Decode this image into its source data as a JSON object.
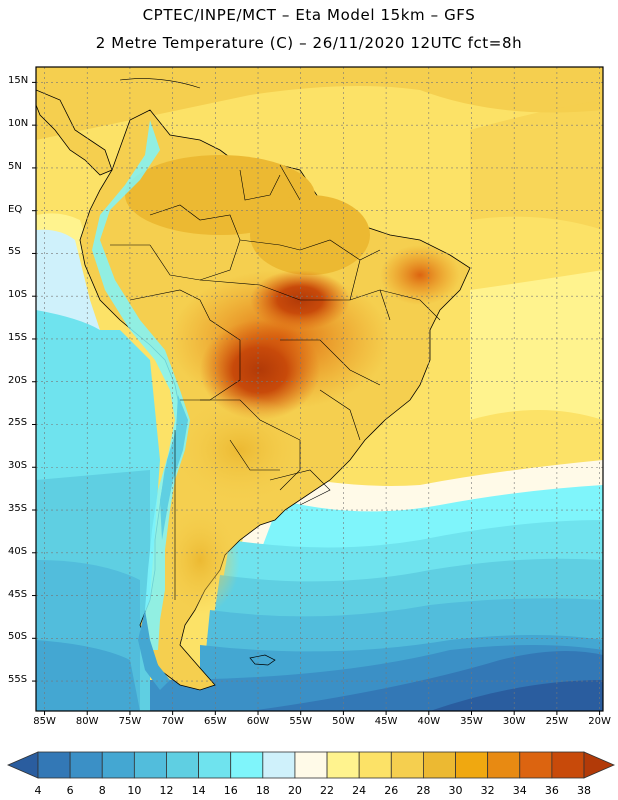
{
  "header": {
    "line1": "CPTEC/INPE/MCT –  Eta Model 15km – GFS",
    "line2": "2 Metre Temperature (C) – 26/11/2020 12UTC fct=8h"
  },
  "map": {
    "lat_labels": [
      "15N",
      "10N",
      "5N",
      "EQ",
      "5S",
      "10S",
      "15S",
      "20S",
      "25S",
      "30S",
      "35S",
      "40S",
      "45S",
      "50S",
      "55S"
    ],
    "lat_values": [
      15,
      10,
      5,
      0,
      -5,
      -10,
      -15,
      -20,
      -25,
      -30,
      -35,
      -40,
      -45,
      -50,
      -55
    ],
    "lon_labels": [
      "85W",
      "80W",
      "75W",
      "70W",
      "65W",
      "60W",
      "55W",
      "50W",
      "45W",
      "40W",
      "35W",
      "30W",
      "25W",
      "20W"
    ],
    "lon_values": [
      -85,
      -80,
      -75,
      -70,
      -65,
      -60,
      -55,
      -50,
      -45,
      -40,
      -35,
      -30,
      -25,
      -20
    ],
    "extent": {
      "lon_min": -86,
      "lon_max": -19.6,
      "lat_min": -58.5,
      "lat_max": 16.8
    }
  },
  "colorbar": {
    "labels": [
      "4",
      "6",
      "8",
      "10",
      "12",
      "14",
      "16",
      "18",
      "20",
      "22",
      "24",
      "26",
      "28",
      "30",
      "32",
      "34",
      "36",
      "38"
    ],
    "colors": [
      "#2a5d9f",
      "#3378b6",
      "#3b90c6",
      "#44a7d2",
      "#52bddc",
      "#5fcfe2",
      "#6fe3ee",
      "#7ff5fb",
      "#cff1fb",
      "#fffae8",
      "#fff38e",
      "#fce267",
      "#f5cf4f",
      "#ecb932",
      "#f0a810",
      "#e88a12",
      "#dc6410",
      "#c84a0a",
      "#b23a08"
    ]
  }
}
